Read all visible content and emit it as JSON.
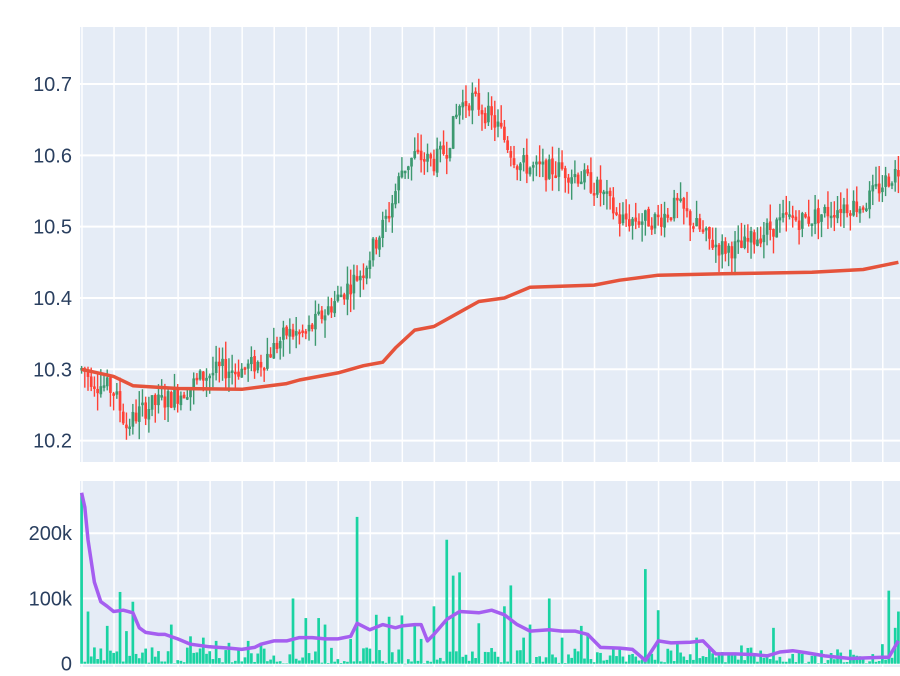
{
  "colors": {
    "background": "#ffffff",
    "plot_bg": "#e5ecf6",
    "grid": "#ffffff",
    "text": "#2a3f5f",
    "up": "#3d9970",
    "down": "#ff4136",
    "moving_average": "#e5533b",
    "volume": "#19d3a2",
    "volume_average": "#a55ef0"
  },
  "chart_data": [
    {
      "type": "candlestick",
      "title": "",
      "xlabel": "",
      "ylabel": "",
      "x_count": 256,
      "ylim": [
        10.17,
        10.78
      ],
      "yticks": [
        10.2,
        10.3,
        10.4,
        10.5,
        10.6,
        10.7
      ],
      "ytick_labels": [
        "10.2",
        "10.3",
        "10.4",
        "10.5",
        "10.6",
        "10.7"
      ],
      "grid": true,
      "candle_anchors": [
        [
          0,
          10.3
        ],
        [
          5,
          10.28
        ],
        [
          10,
          10.27
        ],
        [
          14,
          10.22
        ],
        [
          18,
          10.24
        ],
        [
          22,
          10.25
        ],
        [
          28,
          10.26
        ],
        [
          32,
          10.27
        ],
        [
          38,
          10.29
        ],
        [
          44,
          10.3
        ],
        [
          50,
          10.3
        ],
        [
          56,
          10.31
        ],
        [
          60,
          10.33
        ],
        [
          64,
          10.35
        ],
        [
          70,
          10.35
        ],
        [
          76,
          10.38
        ],
        [
          82,
          10.41
        ],
        [
          88,
          10.44
        ],
        [
          92,
          10.48
        ],
        [
          96,
          10.52
        ],
        [
          100,
          10.58
        ],
        [
          104,
          10.6
        ],
        [
          110,
          10.59
        ],
        [
          114,
          10.61
        ],
        [
          118,
          10.67
        ],
        [
          122,
          10.68
        ],
        [
          126,
          10.66
        ],
        [
          130,
          10.64
        ],
        [
          136,
          10.59
        ],
        [
          142,
          10.58
        ],
        [
          150,
          10.58
        ],
        [
          156,
          10.57
        ],
        [
          162,
          10.55
        ],
        [
          168,
          10.51
        ],
        [
          174,
          10.51
        ],
        [
          180,
          10.51
        ],
        [
          186,
          10.53
        ],
        [
          192,
          10.5
        ],
        [
          196,
          10.48
        ],
        [
          200,
          10.47
        ],
        [
          206,
          10.47
        ],
        [
          212,
          10.49
        ],
        [
          220,
          10.51
        ],
        [
          226,
          10.51
        ],
        [
          232,
          10.52
        ],
        [
          238,
          10.53
        ],
        [
          244,
          10.53
        ],
        [
          250,
          10.56
        ],
        [
          255,
          10.58
        ]
      ],
      "moving_average": [
        [
          0,
          10.3
        ],
        [
          10,
          10.29
        ],
        [
          16,
          10.277
        ],
        [
          30,
          10.273
        ],
        [
          50,
          10.272
        ],
        [
          64,
          10.28
        ],
        [
          68,
          10.285
        ],
        [
          80,
          10.295
        ],
        [
          88,
          10.305
        ],
        [
          94,
          10.31
        ],
        [
          98,
          10.33
        ],
        [
          104,
          10.355
        ],
        [
          110,
          10.36
        ],
        [
          118,
          10.38
        ],
        [
          124,
          10.395
        ],
        [
          132,
          10.4
        ],
        [
          140,
          10.415
        ],
        [
          160,
          10.418
        ],
        [
          168,
          10.425
        ],
        [
          180,
          10.432
        ],
        [
          200,
          10.434
        ],
        [
          228,
          10.436
        ],
        [
          244,
          10.44
        ],
        [
          255,
          10.45
        ]
      ]
    },
    {
      "type": "bar+line",
      "title": "",
      "xlabel": "",
      "ylabel": "",
      "x_count": 256,
      "ylim": [
        -5000,
        280000
      ],
      "yticks": [
        0,
        100000,
        200000
      ],
      "ytick_labels": [
        "0",
        "100k",
        "200k"
      ],
      "grid": true,
      "volume_peaks": [
        [
          0,
          260000
        ],
        [
          2,
          80000
        ],
        [
          4,
          25000
        ],
        [
          8,
          58000
        ],
        [
          12,
          110000
        ],
        [
          14,
          50000
        ],
        [
          16,
          95000
        ],
        [
          22,
          25000
        ],
        [
          28,
          60000
        ],
        [
          34,
          42000
        ],
        [
          38,
          40000
        ],
        [
          42,
          35000
        ],
        [
          46,
          32000
        ],
        [
          52,
          35000
        ],
        [
          56,
          32000
        ],
        [
          66,
          100000
        ],
        [
          70,
          70000
        ],
        [
          74,
          70000
        ],
        [
          76,
          60000
        ],
        [
          84,
          38000
        ],
        [
          86,
          225000
        ],
        [
          92,
          75000
        ],
        [
          96,
          72000
        ],
        [
          100,
          74000
        ],
        [
          104,
          58000
        ],
        [
          106,
          38000
        ],
        [
          110,
          88000
        ],
        [
          114,
          190000
        ],
        [
          116,
          135000
        ],
        [
          118,
          140000
        ],
        [
          124,
          62000
        ],
        [
          132,
          88000
        ],
        [
          134,
          120000
        ],
        [
          138,
          40000
        ],
        [
          140,
          60000
        ],
        [
          146,
          100000
        ],
        [
          150,
          40000
        ],
        [
          156,
          58000
        ],
        [
          158,
          45000
        ],
        [
          166,
          25000
        ],
        [
          172,
          15000
        ],
        [
          176,
          145000
        ],
        [
          180,
          82000
        ],
        [
          186,
          30000
        ],
        [
          192,
          40000
        ],
        [
          200,
          18000
        ],
        [
          206,
          28000
        ],
        [
          210,
          15000
        ],
        [
          216,
          55000
        ],
        [
          222,
          15000
        ],
        [
          228,
          12000
        ],
        [
          236,
          22000
        ],
        [
          244,
          10000
        ],
        [
          250,
          30000
        ],
        [
          252,
          112000
        ],
        [
          254,
          55000
        ],
        [
          255,
          80000
        ]
      ],
      "volume_average": [
        [
          0,
          262000
        ],
        [
          1,
          240000
        ],
        [
          2,
          190000
        ],
        [
          4,
          125000
        ],
        [
          6,
          95000
        ],
        [
          8,
          88000
        ],
        [
          10,
          80000
        ],
        [
          13,
          82000
        ],
        [
          16,
          78000
        ],
        [
          18,
          55000
        ],
        [
          20,
          48000
        ],
        [
          24,
          45000
        ],
        [
          26,
          45000
        ],
        [
          30,
          38000
        ],
        [
          34,
          30000
        ],
        [
          40,
          26000
        ],
        [
          46,
          24000
        ],
        [
          50,
          22000
        ],
        [
          54,
          25000
        ],
        [
          56,
          30000
        ],
        [
          60,
          35000
        ],
        [
          64,
          35000
        ],
        [
          68,
          40000
        ],
        [
          72,
          40000
        ],
        [
          76,
          38000
        ],
        [
          80,
          38000
        ],
        [
          84,
          42000
        ],
        [
          86,
          62000
        ],
        [
          90,
          52000
        ],
        [
          94,
          60000
        ],
        [
          98,
          55000
        ],
        [
          100,
          58000
        ],
        [
          104,
          60000
        ],
        [
          106,
          60000
        ],
        [
          108,
          35000
        ],
        [
          110,
          45000
        ],
        [
          114,
          68000
        ],
        [
          118,
          80000
        ],
        [
          124,
          78000
        ],
        [
          128,
          82000
        ],
        [
          132,
          75000
        ],
        [
          136,
          60000
        ],
        [
          140,
          50000
        ],
        [
          146,
          52000
        ],
        [
          150,
          50000
        ],
        [
          154,
          50000
        ],
        [
          158,
          45000
        ],
        [
          162,
          25000
        ],
        [
          168,
          24000
        ],
        [
          172,
          22000
        ],
        [
          176,
          5000
        ],
        [
          180,
          35000
        ],
        [
          184,
          32000
        ],
        [
          190,
          33000
        ],
        [
          194,
          35000
        ],
        [
          198,
          15000
        ],
        [
          204,
          15000
        ],
        [
          210,
          14000
        ],
        [
          214,
          12000
        ],
        [
          218,
          18000
        ],
        [
          222,
          20000
        ],
        [
          226,
          17000
        ],
        [
          232,
          12000
        ],
        [
          240,
          8000
        ],
        [
          250,
          10000
        ],
        [
          252,
          10000
        ],
        [
          255,
          35000
        ]
      ]
    }
  ]
}
